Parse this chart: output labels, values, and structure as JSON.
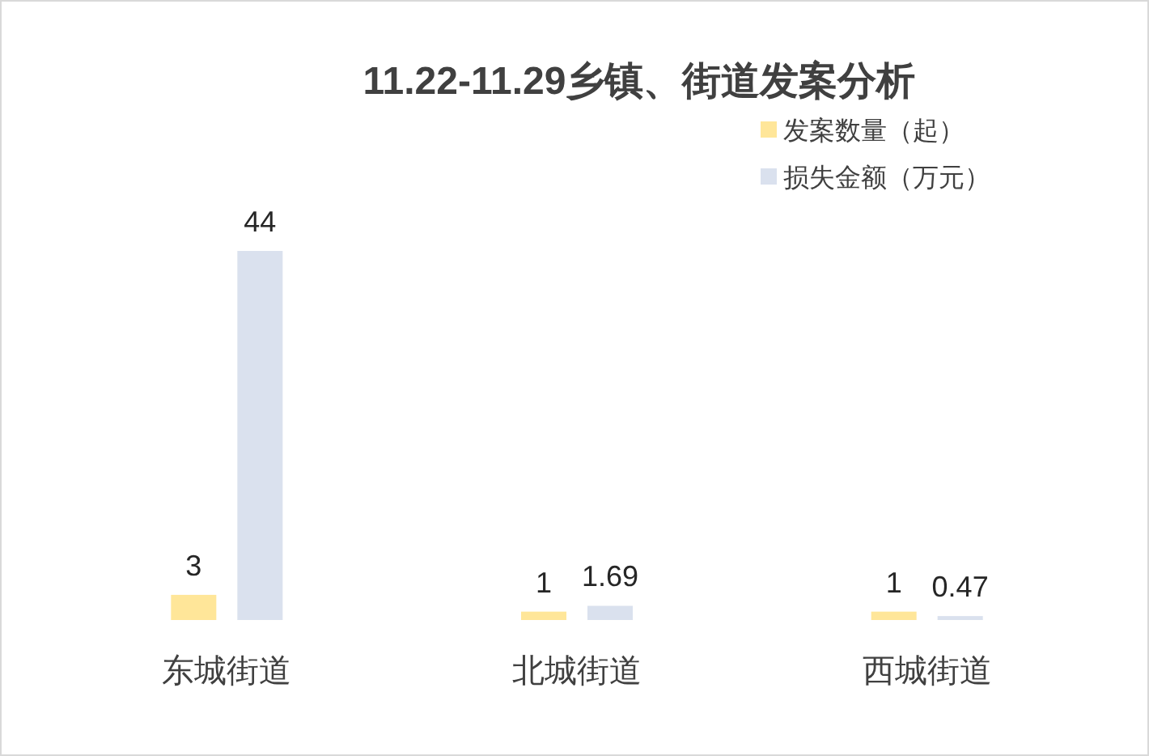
{
  "chart_data": {
    "type": "bar",
    "title": "11.22-11.29乡镇、街道发案分析",
    "categories": [
      "东城街道",
      "北城街道",
      "西城街道"
    ],
    "series": [
      {
        "name": "发案数量（起）",
        "color": "#ffe699",
        "values": [
          3,
          1,
          1
        ]
      },
      {
        "name": "损失金额（万元）",
        "color": "#dae1ee",
        "values": [
          44,
          1.69,
          0.47
        ]
      }
    ],
    "data_labels": true,
    "legend": "top right"
  }
}
